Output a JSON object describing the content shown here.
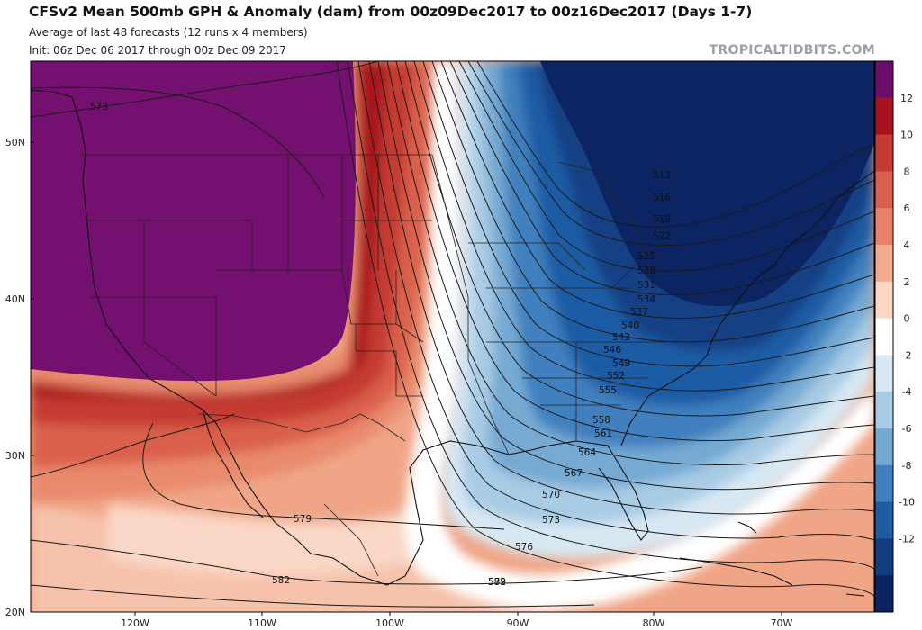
{
  "header": {
    "title": "CFSv2 Mean 500mb GPH & Anomaly (dam) from 00z09Dec2017 to 00z16Dec2017 (Days 1-7)",
    "subtitle": "Average of last 48 forecasts (12 runs x 4 members)",
    "init_line": "Init: 06z Dec 06 2017 through 00z Dec 09 2017",
    "watermark": "TROPICALTIDBITS.COM"
  },
  "map": {
    "lat_labels": [
      "50N",
      "40N",
      "30N",
      "20N"
    ],
    "lon_labels": [
      "120W",
      "110W",
      "100W",
      "90W",
      "80W",
      "70W"
    ],
    "contour_labels": [
      "573",
      "579",
      "582",
      "513",
      "516",
      "519",
      "522",
      "525",
      "528",
      "531",
      "534",
      "537",
      "540",
      "543",
      "546",
      "549",
      "552",
      "555",
      "558",
      "561",
      "564",
      "567",
      "570",
      "573",
      "576",
      "579",
      "582"
    ]
  },
  "colorbar": {
    "labels": [
      "12",
      "10",
      "8",
      "6",
      "4",
      "2",
      "0",
      "-2",
      "-4",
      "-6",
      "-8",
      "-10",
      "-12"
    ],
    "colors": [
      "#6d0d6b",
      "#a8121e",
      "#c53a33",
      "#d95f4e",
      "#e8836a",
      "#f2a98e",
      "#fbd6c4",
      "#ffffff",
      "#d6e6f2",
      "#a7cbe4",
      "#74a9d2",
      "#3f7fbd",
      "#1f5aa3",
      "#133c80",
      "#0b2360"
    ]
  }
}
